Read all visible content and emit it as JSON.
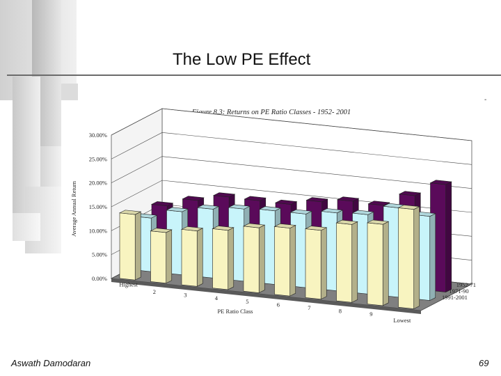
{
  "slide": {
    "title": "The Low PE Effect",
    "author": "Aswath Damodaran",
    "page_number": "69",
    "corner_mark": "-"
  },
  "colors": {
    "series_1991_2001": "#f8f4c0",
    "series_1971_1990": "#c8f4fa",
    "series_1952_1971": "#5a0a5a",
    "floor": "#808080",
    "wall": "#ffffff"
  },
  "chart_data": {
    "type": "bar",
    "subtype": "3d-clustered-column",
    "title": "Figure 8.3: Returns on PE Ratio Classes - 1952- 2001",
    "xlabel": "PE Ratio Class",
    "ylabel": "Average Annual Return",
    "ylim": [
      0,
      30
    ],
    "yticks": [
      "0.00%",
      "5.00%",
      "10.00%",
      "15.00%",
      "20.00%",
      "25.00%",
      "30.00%"
    ],
    "categories": [
      "Highest",
      "2",
      "3",
      "4",
      "5",
      "6",
      "7",
      "8",
      "9",
      "Lowest"
    ],
    "series": [
      {
        "name": "1991-2001",
        "values": [
          13.7,
          10.6,
          11.6,
          12.4,
          13.6,
          14.2,
          14.4,
          16.3,
          17.0,
          20.8
        ]
      },
      {
        "name": "1971-90",
        "values": [
          11.2,
          13.2,
          14.4,
          15.1,
          15.4,
          15.4,
          16.3,
          16.6,
          18.7,
          17.6
        ]
      },
      {
        "name": "1952-71",
        "values": [
          12.0,
          13.8,
          15.2,
          15.1,
          15.0,
          16.2,
          17.0,
          16.8,
          19.5,
          22.5
        ]
      }
    ]
  }
}
